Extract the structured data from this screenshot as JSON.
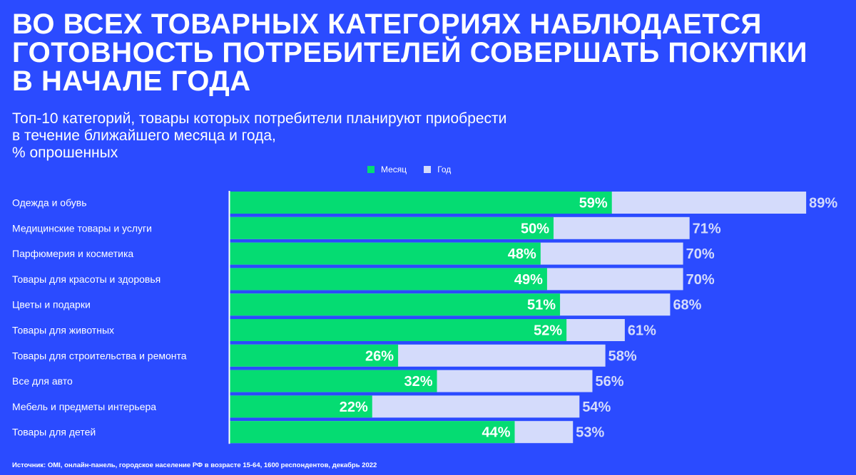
{
  "header": {
    "title_lines": [
      "ВО ВСЕХ ТОВАРНЫХ КАТЕГОРИЯХ НАБЛЮДАЕТСЯ",
      "ГОТОВНОСТЬ ПОТРЕБИТЕЛЕЙ СОВЕРШАТЬ ПОКУПКИ",
      "В НАЧАЛЕ ГОДА"
    ],
    "subtitle_lines": [
      "Топ-10 категорий, товары которых потребители планируют приобрести",
      "в течение ближайшего месяца и года,",
      "% опрошенных"
    ]
  },
  "colors": {
    "background": "#2b4bff",
    "month": "#05dc72",
    "year": "#d4dbfb",
    "year_label": "#d4dbfb"
  },
  "chart_data": {
    "type": "bar",
    "orientation": "horizontal",
    "overlay": true,
    "legend": [
      "Месяц",
      "Год"
    ],
    "legend_position": "top-center",
    "categories": [
      "Одежда и обувь",
      "Медицинские товары и услуги",
      "Парфюмерия и косметика",
      "Товары для красоты и здоровья",
      "Цветы и подарки",
      "Товары для животных",
      "Товары для строительства и ремонта",
      "Все для авто",
      "Мебель и предметы интерьера",
      "Товары для детей"
    ],
    "series": [
      {
        "name": "Месяц",
        "values": [
          59,
          50,
          48,
          49,
          51,
          52,
          26,
          32,
          22,
          44
        ]
      },
      {
        "name": "Год",
        "values": [
          89,
          71,
          70,
          70,
          68,
          61,
          58,
          56,
          54,
          53
        ]
      }
    ],
    "unit": "%",
    "xlim": [
      0,
      90
    ],
    "grid": false
  },
  "footer": {
    "source": "Источник: OMI, онлайн-панель, городское население РФ в возрасте 15-64, 1600 респондентов, декабрь 2022"
  }
}
